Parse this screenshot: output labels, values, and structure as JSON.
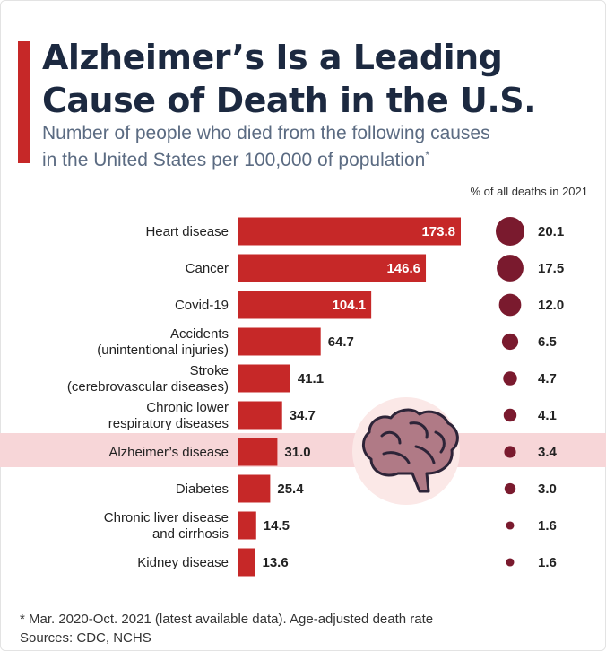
{
  "header": {
    "title_line1": "Alzheimer’s Is a Leading",
    "title_line2": "Cause of Death in the U.S.",
    "subtitle_line1": "Number of people who died from the following causes",
    "subtitle_line2": "in the United States per 100,000 of population",
    "subtitle_mark": "*",
    "pct_header": "% of all deaths in 2021"
  },
  "chart_data": {
    "type": "bar",
    "orientation": "horizontal",
    "title": "Alzheimer’s Is a Leading Cause of Death in the U.S.",
    "subtitle": "Number of people who died from the following causes in the United States per 100,000 of population*",
    "categories": [
      [
        "Heart disease"
      ],
      [
        "Cancer"
      ],
      [
        "Covid-19"
      ],
      [
        "Accidents",
        "(unintentional injuries)"
      ],
      [
        "Stroke",
        "(cerebrovascular diseases)"
      ],
      [
        "Chronic lower",
        "respiratory diseases"
      ],
      [
        "Alzheimer’s disease"
      ],
      [
        "Diabetes"
      ],
      [
        "Chronic liver disease",
        "and cirrhosis"
      ],
      [
        "Kidney disease"
      ]
    ],
    "values": [
      173.8,
      146.6,
      104.1,
      64.7,
      41.1,
      34.7,
      31.0,
      25.4,
      14.5,
      13.6
    ],
    "value_labels": [
      "173.8",
      "146.6",
      "104.1",
      "64.7",
      "41.1",
      "34.7",
      "31.0",
      "25.4",
      "14.5",
      "13.6"
    ],
    "pct_of_all_deaths": [
      20.1,
      17.5,
      12.0,
      6.5,
      4.7,
      4.1,
      3.4,
      3.0,
      1.6,
      1.6
    ],
    "pct_labels": [
      "20.1",
      "17.5",
      "12.0",
      "6.5",
      "4.7",
      "4.1",
      "3.4",
      "3.0",
      "1.6",
      "1.6"
    ],
    "highlighted_category": "Alzheimer’s disease",
    "grid": false,
    "colors": {
      "bar": "#c62828",
      "dot": "#7a1a2e",
      "highlight": "#f7d6d8",
      "brain": "#b07a86"
    }
  },
  "footer": {
    "note": "* Mar. 2020-Oct. 2021 (latest available data). Age-adjusted death rate",
    "sources": "Sources: CDC, NCHS"
  },
  "icons": {
    "brain": "brain-icon"
  }
}
